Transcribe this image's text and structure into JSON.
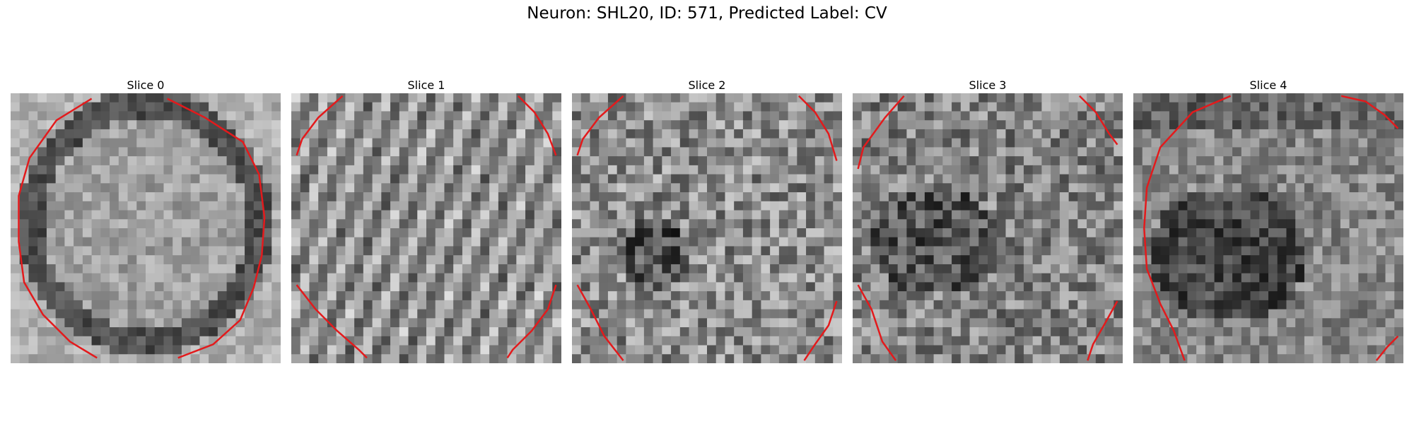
{
  "figure": {
    "title": "Neuron: SHL20, ID: 571, Predicted Label: CV"
  },
  "panels": [
    {
      "title": "Slice 0",
      "texture": "bright-ellipse-dark-rim",
      "contour": [
        [
          [
            0.58,
            0.02
          ],
          [
            0.72,
            0.09
          ],
          [
            0.86,
            0.18
          ],
          [
            0.92,
            0.3
          ],
          [
            0.94,
            0.46
          ],
          [
            0.93,
            0.6
          ],
          [
            0.9,
            0.72
          ],
          [
            0.85,
            0.84
          ],
          [
            0.75,
            0.93
          ],
          [
            0.62,
            0.98
          ]
        ],
        [
          [
            0.3,
            0.02
          ],
          [
            0.17,
            0.1
          ],
          [
            0.07,
            0.24
          ],
          [
            0.03,
            0.38
          ],
          [
            0.03,
            0.55
          ],
          [
            0.05,
            0.7
          ],
          [
            0.12,
            0.82
          ],
          [
            0.22,
            0.92
          ],
          [
            0.32,
            0.98
          ]
        ]
      ]
    },
    {
      "title": "Slice 1",
      "texture": "diagonal-stripes",
      "contour": [
        [
          [
            0.19,
            0.01
          ],
          [
            0.1,
            0.09
          ],
          [
            0.04,
            0.17
          ],
          [
            0.02,
            0.23
          ]
        ],
        [
          [
            0.84,
            0.01
          ],
          [
            0.9,
            0.07
          ],
          [
            0.95,
            0.15
          ],
          [
            0.98,
            0.23
          ]
        ],
        [
          [
            0.02,
            0.71
          ],
          [
            0.09,
            0.8
          ],
          [
            0.17,
            0.88
          ],
          [
            0.25,
            0.95
          ],
          [
            0.28,
            0.98
          ]
        ],
        [
          [
            0.98,
            0.71
          ],
          [
            0.95,
            0.8
          ],
          [
            0.89,
            0.88
          ],
          [
            0.82,
            0.95
          ],
          [
            0.8,
            0.98
          ]
        ]
      ]
    },
    {
      "title": "Slice 2",
      "texture": "noise-dark-spot",
      "contour": [
        [
          [
            0.19,
            0.01
          ],
          [
            0.1,
            0.09
          ],
          [
            0.04,
            0.17
          ],
          [
            0.02,
            0.23
          ]
        ],
        [
          [
            0.84,
            0.01
          ],
          [
            0.9,
            0.07
          ],
          [
            0.95,
            0.15
          ],
          [
            0.98,
            0.25
          ]
        ],
        [
          [
            0.02,
            0.71
          ],
          [
            0.07,
            0.8
          ],
          [
            0.12,
            0.9
          ],
          [
            0.19,
            0.99
          ]
        ],
        [
          [
            0.98,
            0.77
          ],
          [
            0.95,
            0.86
          ],
          [
            0.9,
            0.93
          ],
          [
            0.86,
            0.99
          ]
        ]
      ]
    },
    {
      "title": "Slice 3",
      "texture": "noise-dark-left",
      "contour": [
        [
          [
            0.19,
            0.01
          ],
          [
            0.12,
            0.09
          ],
          [
            0.04,
            0.2
          ],
          [
            0.02,
            0.28
          ]
        ],
        [
          [
            0.84,
            0.01
          ],
          [
            0.9,
            0.07
          ],
          [
            0.95,
            0.15
          ],
          [
            0.98,
            0.19
          ]
        ],
        [
          [
            0.02,
            0.71
          ],
          [
            0.07,
            0.8
          ],
          [
            0.11,
            0.92
          ],
          [
            0.16,
            0.99
          ]
        ],
        [
          [
            0.98,
            0.77
          ],
          [
            0.93,
            0.86
          ],
          [
            0.89,
            0.93
          ],
          [
            0.87,
            0.99
          ]
        ]
      ]
    },
    {
      "title": "Slice 4",
      "texture": "dark-blob",
      "contour": [
        [
          [
            0.36,
            0.01
          ],
          [
            0.22,
            0.07
          ],
          [
            0.1,
            0.2
          ],
          [
            0.05,
            0.35
          ],
          [
            0.04,
            0.5
          ],
          [
            0.05,
            0.65
          ],
          [
            0.1,
            0.78
          ],
          [
            0.15,
            0.88
          ],
          [
            0.19,
            0.99
          ]
        ],
        [
          [
            0.77,
            0.01
          ],
          [
            0.86,
            0.03
          ],
          [
            0.93,
            0.08
          ],
          [
            0.98,
            0.13
          ]
        ],
        [
          [
            0.98,
            0.9
          ],
          [
            0.94,
            0.94
          ],
          [
            0.9,
            0.99
          ]
        ]
      ]
    }
  ],
  "colors": {
    "contour": "#e31a1c",
    "background": "#ffffff"
  }
}
